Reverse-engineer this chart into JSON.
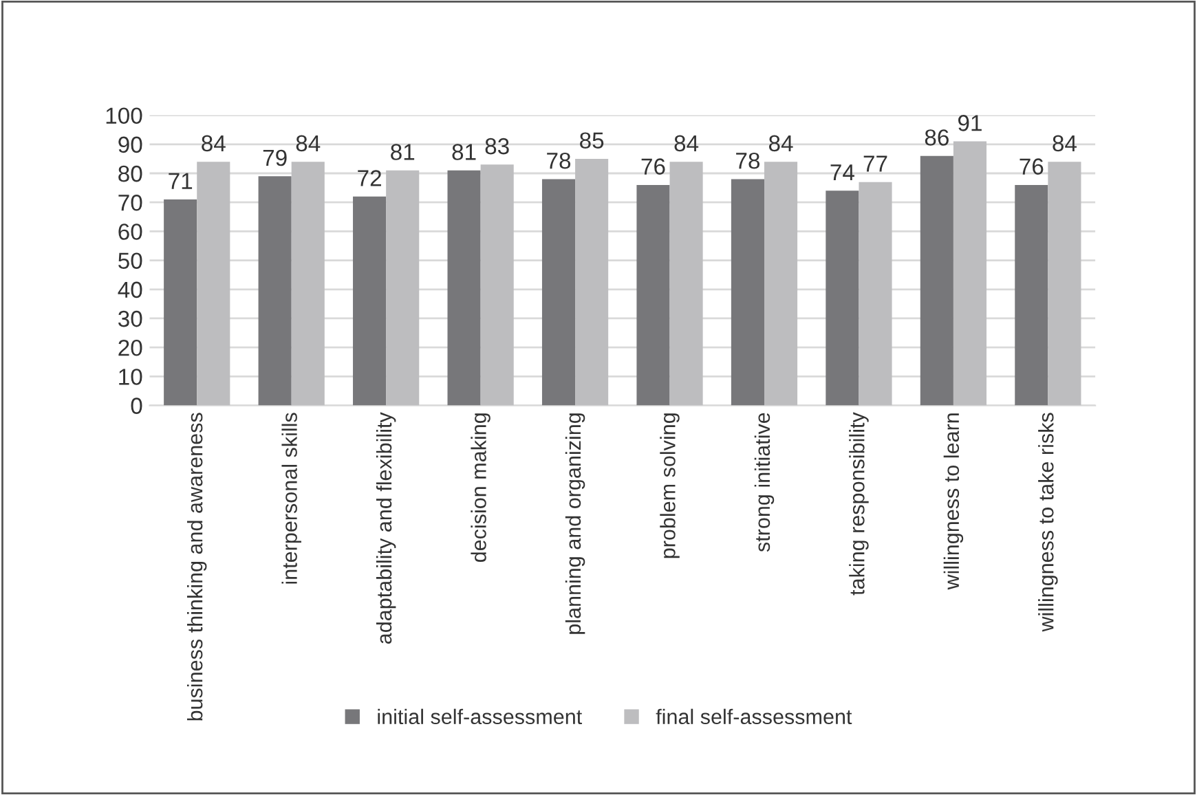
{
  "chart_data": {
    "type": "bar",
    "categories": [
      "business thinking and awareness",
      "interpersonal skills",
      "adaptability and flexibility",
      "decision making",
      "planning and organizing",
      "problem solving",
      "strong initiative",
      "taking responsibility",
      "willingness to learn",
      "willingness to take risks"
    ],
    "series": [
      {
        "name": "initial self-assessment",
        "color": "#77777a",
        "values": [
          71,
          79,
          72,
          81,
          78,
          76,
          78,
          74,
          86,
          76
        ]
      },
      {
        "name": "final self-assessment",
        "color": "#bdbdbf",
        "values": [
          84,
          84,
          81,
          83,
          85,
          84,
          84,
          77,
          91,
          84
        ]
      }
    ],
    "ylim": [
      0,
      100
    ],
    "yticks": [
      0,
      10,
      20,
      30,
      40,
      50,
      60,
      70,
      80,
      90,
      100
    ],
    "grid": "y",
    "legend": "bottom",
    "data_labels": true
  }
}
